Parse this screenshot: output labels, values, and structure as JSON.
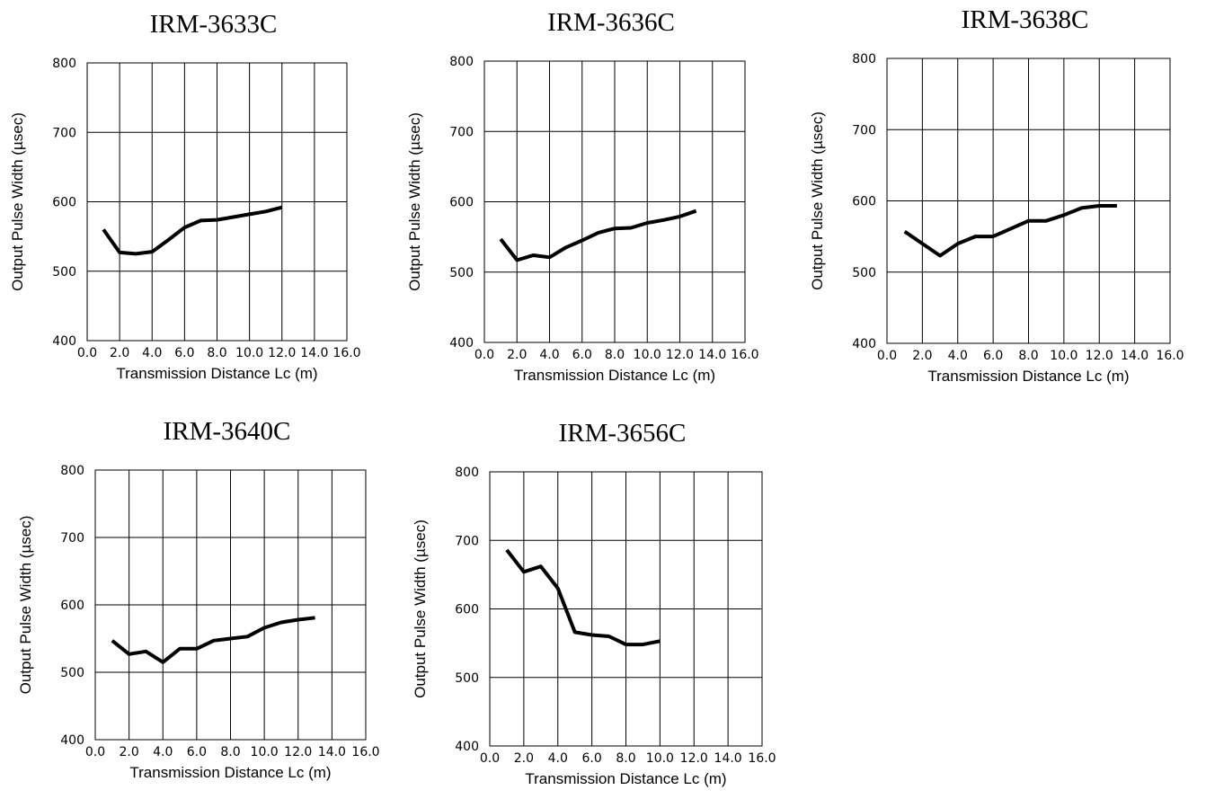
{
  "chart_data": [
    {
      "type": "line",
      "title": "IRM-3633C",
      "xlabel": "Transmission Distance Lc (m)",
      "ylabel": "Output Pulse Width (µsec)",
      "xlim": [
        0,
        16
      ],
      "ylim": [
        400,
        800
      ],
      "x_ticks": [
        "0.0",
        "2.0",
        "4.0",
        "6.0",
        "8.0",
        "10.0",
        "12.0",
        "14.0",
        "16.0"
      ],
      "y_ticks": [
        "400",
        "500",
        "600",
        "700",
        "800"
      ],
      "grid": true,
      "series": [
        {
          "x": [
            1,
            2,
            3,
            4,
            5,
            6,
            7,
            8,
            9,
            10,
            11,
            12
          ],
          "y": [
            560,
            527,
            525,
            528,
            545,
            563,
            573,
            574,
            578,
            582,
            586,
            592
          ]
        }
      ]
    },
    {
      "type": "line",
      "title": "IRM-3636C",
      "xlabel": "Transmission Distance Lc (m)",
      "ylabel": "Output Pulse Width (µsec)",
      "xlim": [
        0,
        16
      ],
      "ylim": [
        400,
        800
      ],
      "x_ticks": [
        "0.0",
        "2.0",
        "4.0",
        "6.0",
        "8.0",
        "10.0",
        "12.0",
        "14.0",
        "16.0"
      ],
      "y_ticks": [
        "400",
        "500",
        "600",
        "700",
        "800"
      ],
      "grid": true,
      "series": [
        {
          "x": [
            1,
            2,
            3,
            4,
            5,
            6,
            7,
            8,
            9,
            10,
            11,
            12,
            13
          ],
          "y": [
            547,
            517,
            524,
            521,
            535,
            545,
            556,
            562,
            563,
            570,
            574,
            579,
            587
          ]
        }
      ]
    },
    {
      "type": "line",
      "title": "IRM-3638C",
      "xlabel": "Transmission Distance Lc (m)",
      "ylabel": "Output Pulse Width (µsec)",
      "xlim": [
        0,
        16
      ],
      "ylim": [
        400,
        800
      ],
      "x_ticks": [
        "0.0",
        "2.0",
        "4.0",
        "6.0",
        "8.0",
        "10.0",
        "12.0",
        "14.0",
        "16.0"
      ],
      "y_ticks": [
        "400",
        "500",
        "600",
        "700",
        "800"
      ],
      "grid": true,
      "series": [
        {
          "x": [
            1,
            2,
            3,
            4,
            5,
            6,
            7,
            8,
            9,
            10,
            11,
            12,
            13
          ],
          "y": [
            557,
            540,
            523,
            540,
            550,
            550,
            561,
            572,
            572,
            580,
            590,
            593,
            593
          ]
        }
      ]
    },
    {
      "type": "line",
      "title": "IRM-3640C",
      "xlabel": "Transmission Distance Lc (m)",
      "ylabel": "Output Pulse Width (µsec)",
      "xlim": [
        0,
        16
      ],
      "ylim": [
        400,
        800
      ],
      "x_ticks": [
        "0.0",
        "2.0",
        "4.0",
        "6.0",
        "8.0",
        "10.0",
        "12.0",
        "14.0",
        "16.0"
      ],
      "y_ticks": [
        "400",
        "500",
        "600",
        "700",
        "800"
      ],
      "grid": true,
      "series": [
        {
          "x": [
            1,
            2,
            3,
            4,
            5,
            6,
            7,
            8,
            9,
            10,
            11,
            12,
            13
          ],
          "y": [
            547,
            527,
            531,
            515,
            535,
            535,
            547,
            550,
            553,
            566,
            574,
            578,
            581
          ]
        }
      ]
    },
    {
      "type": "line",
      "title": "IRM-3656C",
      "xlabel": "Transmission Distance Lc (m)",
      "ylabel": "Output Pulse Width (µsec)",
      "xlim": [
        0,
        16
      ],
      "ylim": [
        400,
        800
      ],
      "x_ticks": [
        "0.0",
        "2.0",
        "4.0",
        "6.0",
        "8.0",
        "10.0",
        "12.0",
        "14.0",
        "16.0"
      ],
      "y_ticks": [
        "400",
        "500",
        "600",
        "700",
        "800"
      ],
      "grid": true,
      "series": [
        {
          "x": [
            1,
            2,
            3,
            4,
            5,
            6,
            7,
            8,
            9,
            10
          ],
          "y": [
            686,
            654,
            662,
            630,
            566,
            562,
            560,
            548,
            548,
            553
          ]
        }
      ]
    }
  ]
}
